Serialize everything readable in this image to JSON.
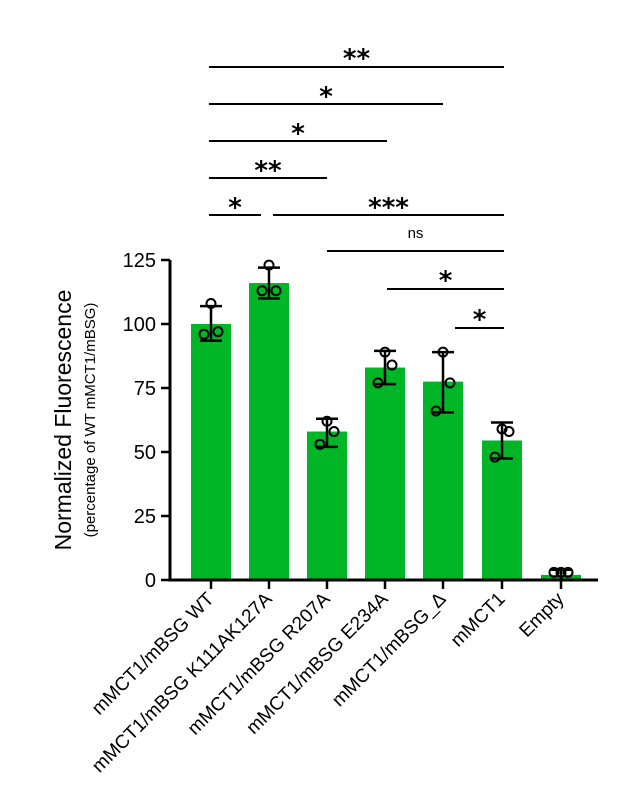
{
  "chart_data": {
    "type": "bar",
    "title": "",
    "ylabel": "Normalized Fluorescence",
    "ylabel_sub": "(percentage of WT mMCT1/mBSG)",
    "xlabel": "",
    "ylim": [
      0,
      125
    ],
    "yticks": [
      "0",
      "25",
      "50",
      "75",
      "100",
      "125"
    ],
    "bar_color": "#00b526",
    "grid": false,
    "categories": [
      "mMCT1/mBSG WT",
      "mMCT1/mBSG K111AK127A",
      "mMCT1/mBSG R207A",
      "mMCT1/mBSG E234A",
      "mMCT1/mBSG_Δ",
      "mMCT1",
      "Empty"
    ],
    "values": [
      100,
      116,
      58,
      83,
      77.5,
      54.5,
      2
    ],
    "error": [
      [
        93.5,
        107
      ],
      [
        110,
        122
      ],
      [
        52,
        63
      ],
      [
        76.5,
        89.5
      ],
      [
        65.5,
        89
      ],
      [
        47.5,
        61.5
      ],
      [
        0,
        4
      ]
    ],
    "points": [
      [
        108,
        96,
        97
      ],
      [
        123,
        113,
        113
      ],
      [
        62,
        53,
        58
      ],
      [
        89,
        77,
        84
      ],
      [
        89,
        66,
        77
      ],
      [
        59,
        48,
        58
      ],
      [
        3,
        3,
        3
      ]
    ],
    "comparisons": [
      {
        "from": 0,
        "to": 5,
        "label": "**"
      },
      {
        "from": 0,
        "to": 4,
        "label": "*"
      },
      {
        "from": 0,
        "to": 3,
        "label": "*"
      },
      {
        "from": 0,
        "to": 2,
        "label": "**"
      },
      {
        "from": 0,
        "to": 1,
        "label": "*"
      },
      {
        "from": 1,
        "to": 5,
        "label": "***"
      },
      {
        "from": 2,
        "to": 5,
        "label": "ns"
      },
      {
        "from": 3,
        "to": 5,
        "label": "*"
      },
      {
        "from": 4,
        "to": 5,
        "label": "*"
      }
    ]
  }
}
